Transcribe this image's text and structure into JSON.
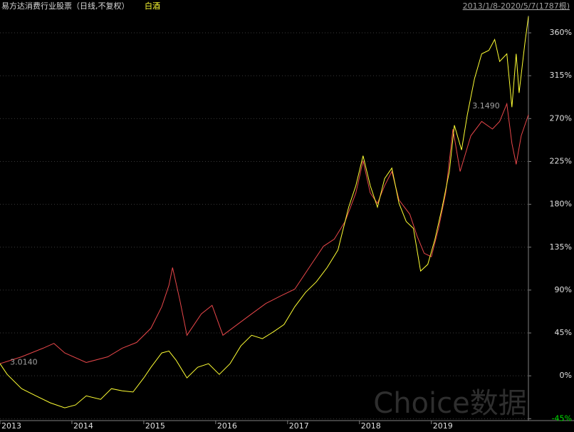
{
  "chart_data": {
    "type": "line",
    "title": "易方达消费行业股票（日线,不复权）",
    "date_range": "2013/1/8-2020/5/7(1787根)",
    "watermark": "Choice数据",
    "xlim": [
      2013.0,
      2020.35
    ],
    "xticks": [
      2013,
      2014,
      2015,
      2016,
      2017,
      2018,
      2019
    ],
    "ylim": [
      -47,
      378
    ],
    "yticks": [
      {
        "value": -45,
        "label": "-45%"
      },
      {
        "value": 0,
        "label": "0%"
      },
      {
        "value": 45,
        "label": "45%"
      },
      {
        "value": 90,
        "label": "90%"
      },
      {
        "value": 135,
        "label": "135%"
      },
      {
        "value": 180,
        "label": "180%"
      },
      {
        "value": 225,
        "label": "225%"
      },
      {
        "value": 270,
        "label": "270%"
      },
      {
        "value": 315,
        "label": "315%"
      },
      {
        "value": 360,
        "label": "360%"
      }
    ],
    "grid": true,
    "series": [
      {
        "name": "易方达消费行业股票（日线,不复权）",
        "color": "#e8474a",
        "x": [
          2013.0,
          2013.3,
          2013.6,
          2013.75,
          2013.9,
          2014.2,
          2014.5,
          2014.7,
          2014.9,
          2015.1,
          2015.25,
          2015.35,
          2015.4,
          2015.5,
          2015.6,
          2015.8,
          2015.95,
          2016.1,
          2016.3,
          2016.5,
          2016.7,
          2016.9,
          2017.1,
          2017.3,
          2017.5,
          2017.65,
          2017.8,
          2017.95,
          2018.05,
          2018.15,
          2018.25,
          2018.35,
          2018.45,
          2018.55,
          2018.7,
          2018.8,
          2018.9,
          2019.0,
          2019.1,
          2019.2,
          2019.3,
          2019.4,
          2019.55,
          2019.7,
          2019.85,
          2019.95,
          2020.05,
          2020.12,
          2020.18,
          2020.25,
          2020.35
        ],
        "values": [
          12.7,
          20,
          29,
          34,
          24,
          14,
          20,
          29,
          35,
          50,
          72.5,
          95,
          113.6,
          80,
          42.6,
          65,
          74,
          42.6,
          53.8,
          65,
          76,
          83.7,
          91,
          113.6,
          136,
          143.5,
          162,
          192,
          225.7,
          192,
          181,
          199.6,
          214.5,
          184.6,
          169.7,
          147,
          128.6,
          125,
          154.7,
          192,
          259,
          214.5,
          252,
          267,
          259,
          267,
          285.5,
          244,
          222,
          252,
          274
        ]
      },
      {
        "name": "白酒",
        "color": "#ffff33",
        "x": [
          2013.0,
          2013.1,
          2013.3,
          2013.5,
          2013.7,
          2013.9,
          2014.05,
          2014.2,
          2014.4,
          2014.55,
          2014.7,
          2014.85,
          2015.0,
          2015.1,
          2015.25,
          2015.35,
          2015.45,
          2015.6,
          2015.75,
          2015.9,
          2016.05,
          2016.2,
          2016.35,
          2016.5,
          2016.65,
          2016.8,
          2016.95,
          2017.1,
          2017.25,
          2017.4,
          2017.55,
          2017.7,
          2017.85,
          2017.95,
          2018.05,
          2018.15,
          2018.25,
          2018.35,
          2018.45,
          2018.55,
          2018.65,
          2018.75,
          2018.85,
          2018.95,
          2019.05,
          2019.15,
          2019.25,
          2019.32,
          2019.42,
          2019.5,
          2019.6,
          2019.7,
          2019.8,
          2019.88,
          2019.95,
          2020.05,
          2020.12,
          2020.18,
          2020.22,
          2020.3,
          2020.35
        ],
        "values": [
          12.7,
          1.5,
          -13.5,
          -21,
          -28.4,
          -33.6,
          -30.6,
          -21,
          -24.7,
          -13.5,
          -15.7,
          -17,
          -2.2,
          9,
          24,
          26,
          16.4,
          -2.2,
          9,
          12.7,
          1.5,
          12.7,
          31.4,
          42.6,
          39,
          46,
          53.8,
          72.5,
          87.5,
          98.7,
          113.6,
          132,
          177,
          199.6,
          231,
          199.6,
          177,
          207,
          218,
          181,
          162,
          154.7,
          110,
          117,
          143.5,
          177,
          214.5,
          263,
          237,
          274,
          312,
          338,
          341.6,
          353,
          330,
          338,
          282,
          338,
          297,
          349,
          377
        ]
      }
    ],
    "annotations": [
      {
        "text": "3.1490",
        "x": 2019.53,
        "y": 283
      },
      {
        "text": "3.0140",
        "x": 2013.1,
        "y": 14
      }
    ]
  }
}
